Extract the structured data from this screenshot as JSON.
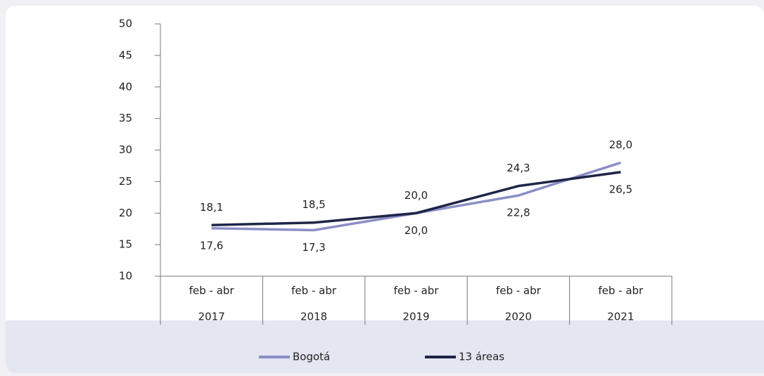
{
  "chart_data": {
    "type": "line",
    "categories": [
      [
        "feb - abr",
        "2017"
      ],
      [
        "feb - abr",
        "2018"
      ],
      [
        "feb - abr",
        "2019"
      ],
      [
        "feb - abr",
        "2020"
      ],
      [
        "feb - abr",
        "2021"
      ]
    ],
    "series": [
      {
        "name": "Bogotá",
        "color": "#8a8ec6",
        "values": [
          17.6,
          17.3,
          20.0,
          22.8,
          28.0
        ],
        "value_labels": [
          "17,6",
          "17,3",
          "20,0",
          "22,8",
          "28,0"
        ]
      },
      {
        "name": "13 áreas",
        "color": "#1e2547",
        "values": [
          18.1,
          18.5,
          20.0,
          24.3,
          26.5
        ],
        "value_labels": [
          "18,1",
          "18,5",
          "20,0",
          "24,3",
          "26,5"
        ]
      }
    ],
    "ylim": [
      10,
      50
    ],
    "yticks": [
      10,
      15,
      20,
      25,
      30,
      35,
      40,
      45,
      50
    ],
    "legend": "bottom"
  }
}
